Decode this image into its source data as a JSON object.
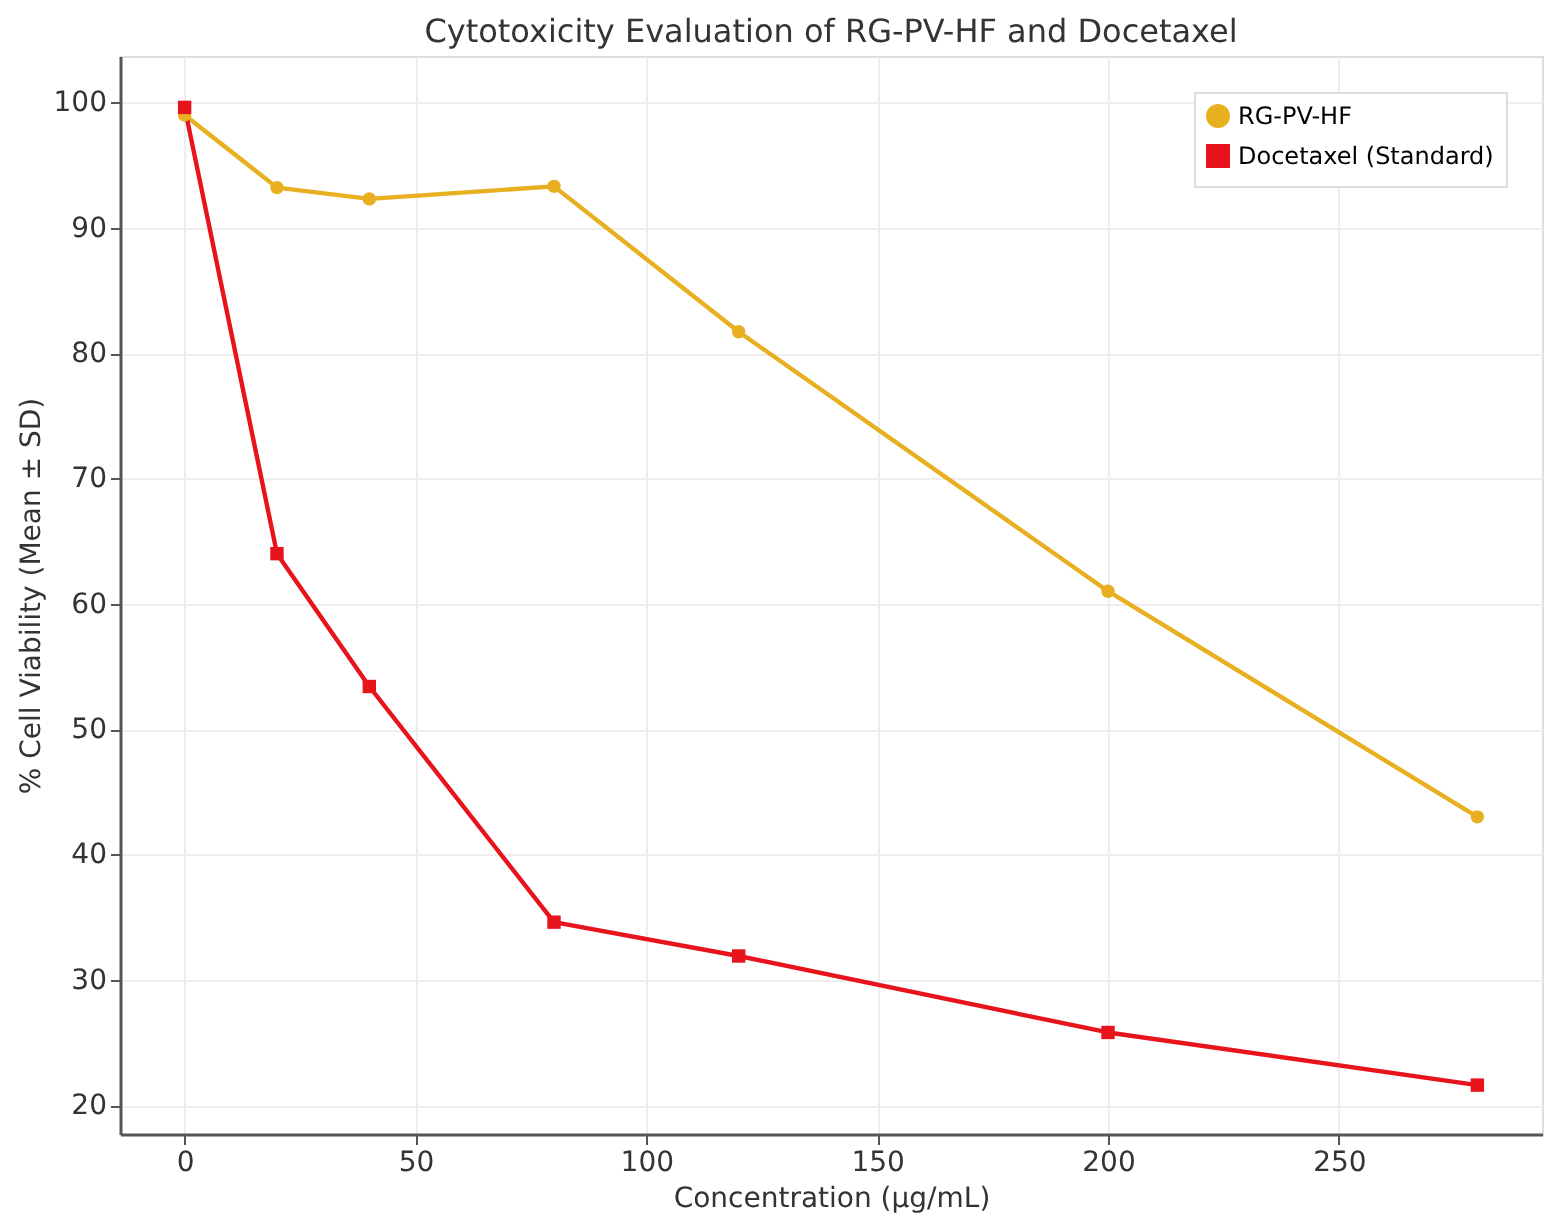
{
  "chart_data": {
    "type": "line",
    "title": "Cytotoxicity Evaluation of RG-PV-HF and Docetaxel",
    "xlabel": "Concentration (µg/mL)",
    "ylabel": "% Cell Viability (Mean ± SD)",
    "x": [
      0,
      20,
      40,
      80,
      120,
      200,
      280
    ],
    "series": [
      {
        "name": "RG-PV-HF",
        "color": "#e8b020",
        "marker": "circle",
        "values": [
          99.0,
          93.2,
          92.3,
          93.3,
          81.7,
          61.0,
          43.0
        ]
      },
      {
        "name": "Docetaxel (Standard)",
        "color": "#e8141c",
        "marker": "square",
        "values": [
          99.6,
          64.0,
          53.4,
          34.6,
          31.9,
          25.8,
          21.6
        ]
      }
    ],
    "xlim": [
      -14,
      294
    ],
    "ylim": [
      17.7,
      103.7
    ],
    "xticks": [
      0,
      50,
      100,
      150,
      200,
      250
    ],
    "yticks": [
      20,
      30,
      40,
      50,
      60,
      70,
      80,
      90,
      100
    ],
    "grid": true,
    "legend": "top right",
    "line_style": "solid"
  }
}
